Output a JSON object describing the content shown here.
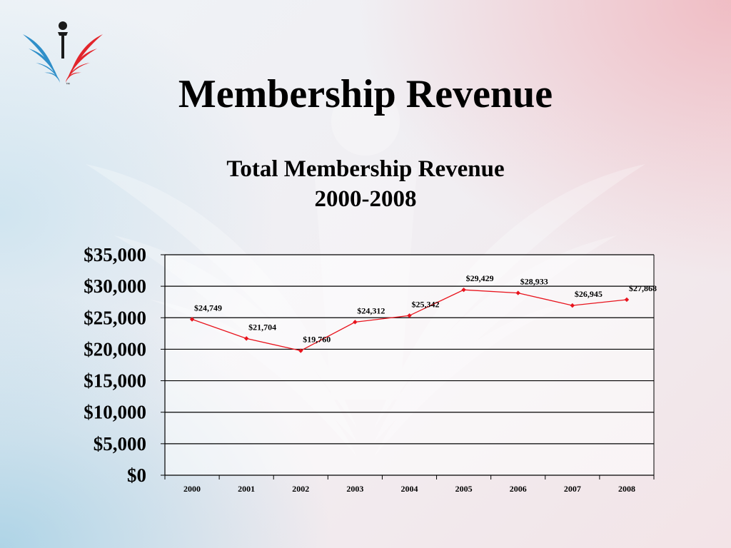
{
  "slide": {
    "title": "Membership Revenue"
  },
  "logo": {
    "icon": "open-book-figure-logo",
    "trademark": "™"
  },
  "colors": {
    "series_line": "#e8131c",
    "series_marker": "#e8131c",
    "gridline": "#000000",
    "plot_background": "#ffffff",
    "logo_blue": "#2f8fc9",
    "logo_red": "#e2252b",
    "logo_dark": "#1a1a1a"
  },
  "chart_data": {
    "type": "line",
    "title": "Total Membership Revenue",
    "subtitle": "2000-2008",
    "xlabel": "",
    "ylabel": "",
    "categories": [
      "2000",
      "2001",
      "2002",
      "2003",
      "2004",
      "2005",
      "2006",
      "2007",
      "2008"
    ],
    "series": [
      {
        "values": [
          24749,
          21704,
          19760,
          24312,
          25342,
          29429,
          28933,
          26945,
          27868
        ],
        "data_labels": [
          "$24,749",
          "$21,704",
          "$19,760",
          "$24,312",
          "$25,342",
          "$29,429",
          "$28,933",
          "$26,945",
          "$27,868"
        ]
      }
    ],
    "ylim": [
      0,
      35000
    ],
    "yticks": [
      0,
      5000,
      10000,
      15000,
      20000,
      25000,
      30000,
      35000
    ],
    "ytick_labels": [
      "$0",
      "$5,000",
      "$10,000",
      "$15,000",
      "$20,000",
      "$25,000",
      "$30,000",
      "$35,000"
    ],
    "grid": true,
    "legend": "none"
  }
}
